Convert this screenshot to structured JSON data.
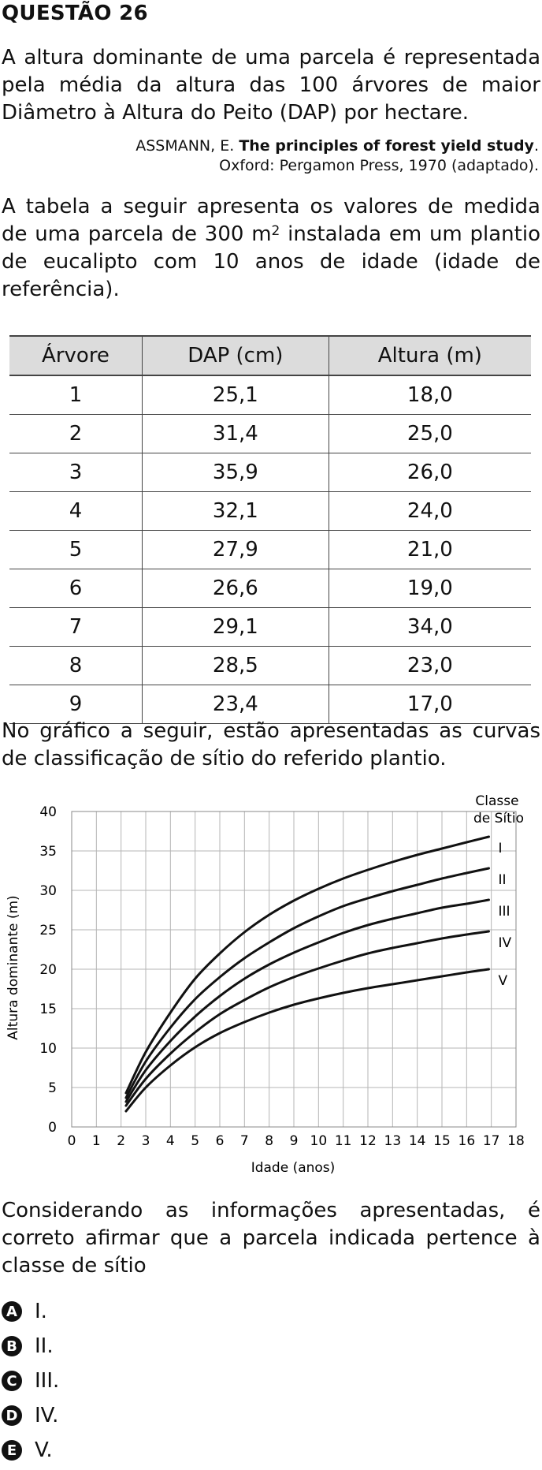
{
  "question_title": "QUESTÃO 26",
  "intro": "A altura dominante de uma parcela é representada pela média da altura das 100 árvores de maior Diâmetro à Altura do Peito (DAP) por hectare.",
  "reference": {
    "author": "ASSMANN, E.",
    "work": "The principles of forest yield study",
    "after_work": ".",
    "line2": "Oxford: Pergamon Press, 1970 (adaptado)."
  },
  "table_intro": {
    "before_sup": "A tabela a seguir apresenta os valores de medida de uma parcela de 300 m",
    "sup": "2",
    "after_sup": " instalada em um plantio de eucalipto com 10 anos de idade (idade de referência)."
  },
  "table": {
    "headers": [
      "Árvore",
      "DAP (cm)",
      "Altura (m)"
    ],
    "rows": [
      [
        "1",
        "25,1",
        "18,0"
      ],
      [
        "2",
        "31,4",
        "25,0"
      ],
      [
        "3",
        "35,9",
        "26,0"
      ],
      [
        "4",
        "32,1",
        "24,0"
      ],
      [
        "5",
        "27,9",
        "21,0"
      ],
      [
        "6",
        "26,6",
        "19,0"
      ],
      [
        "7",
        "29,1",
        "34,0"
      ],
      [
        "8",
        "28,5",
        "23,0"
      ],
      [
        "9",
        "23,4",
        "17,0"
      ]
    ]
  },
  "chart_intro": "No gráfico a seguir, estão apresentadas as curvas de classificação de sítio do referido plantio.",
  "chart_data": {
    "type": "line",
    "xlabel": "Idade (anos)",
    "ylabel": "Altura dominante (m)",
    "legend_title_line1": "Classe",
    "legend_title_line2": "de Sítio",
    "xlim": [
      0,
      18
    ],
    "ylim": [
      0,
      40
    ],
    "xticks": [
      0,
      1,
      2,
      3,
      4,
      5,
      6,
      7,
      8,
      9,
      10,
      11,
      12,
      13,
      14,
      15,
      16,
      17,
      18
    ],
    "yticks": [
      0,
      5,
      10,
      15,
      20,
      25,
      30,
      35,
      40
    ],
    "grid": true,
    "series": [
      {
        "name": "I",
        "x": [
          2.2,
          3,
          4,
          5,
          6,
          7,
          8,
          9,
          10,
          11,
          12,
          13,
          14,
          15,
          16,
          16.9
        ],
        "y": [
          4.3,
          9.5,
          14.5,
          18.8,
          22.0,
          24.7,
          26.9,
          28.7,
          30.2,
          31.5,
          32.6,
          33.6,
          34.5,
          35.3,
          36.1,
          36.8
        ]
      },
      {
        "name": "II",
        "x": [
          2.2,
          3,
          4,
          5,
          6,
          7,
          8,
          9,
          10,
          11,
          12,
          13,
          14,
          15,
          16,
          16.9
        ],
        "y": [
          3.7,
          8.3,
          12.6,
          16.2,
          19.0,
          21.4,
          23.4,
          25.2,
          26.7,
          28.0,
          29.0,
          29.9,
          30.7,
          31.5,
          32.2,
          32.8
        ]
      },
      {
        "name": "III",
        "x": [
          2.2,
          3,
          4,
          5,
          6,
          7,
          8,
          9,
          10,
          11,
          12,
          13,
          14,
          15,
          16,
          16.9
        ],
        "y": [
          3.2,
          7.2,
          10.9,
          14.0,
          16.6,
          18.8,
          20.6,
          22.1,
          23.4,
          24.6,
          25.6,
          26.4,
          27.1,
          27.8,
          28.3,
          28.8
        ]
      },
      {
        "name": "IV",
        "x": [
          2.2,
          3,
          4,
          5,
          6,
          7,
          8,
          9,
          10,
          11,
          12,
          13,
          14,
          15,
          16,
          16.9
        ],
        "y": [
          2.7,
          6.1,
          9.3,
          12.0,
          14.3,
          16.1,
          17.7,
          19.0,
          20.1,
          21.1,
          22.0,
          22.7,
          23.3,
          23.9,
          24.4,
          24.8
        ]
      },
      {
        "name": "V",
        "x": [
          2.2,
          3,
          4,
          5,
          6,
          7,
          8,
          9,
          10,
          11,
          12,
          13,
          14,
          15,
          16,
          16.9
        ],
        "y": [
          2.0,
          5.0,
          7.8,
          10.1,
          11.9,
          13.3,
          14.5,
          15.5,
          16.3,
          17.0,
          17.6,
          18.1,
          18.6,
          19.1,
          19.6,
          20.0
        ]
      }
    ]
  },
  "question": "Considerando as informações apresentadas, é correto afirmar que a parcela indicada pertence à classe de sítio",
  "options": [
    {
      "letter": "A",
      "text": "I."
    },
    {
      "letter": "B",
      "text": "II."
    },
    {
      "letter": "C",
      "text": "III."
    },
    {
      "letter": "D",
      "text": "IV."
    },
    {
      "letter": "E",
      "text": "V."
    }
  ]
}
